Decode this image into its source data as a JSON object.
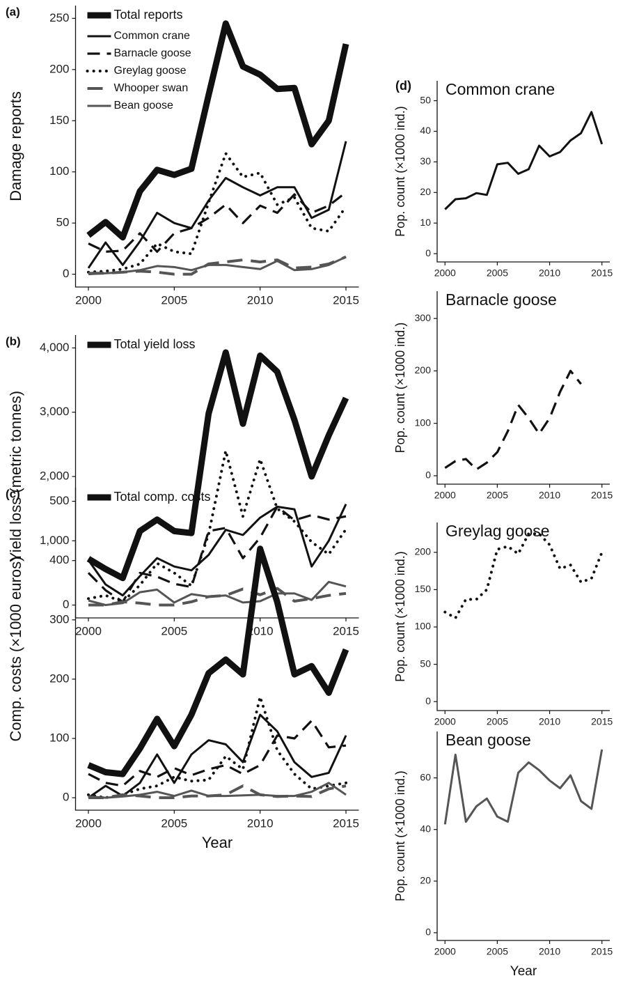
{
  "chart_data": [
    {
      "type": "line",
      "panel_label": "(a)",
      "y_label": "Damage reports",
      "x": [
        2000,
        2001,
        2002,
        2003,
        2004,
        2005,
        2006,
        2007,
        2008,
        2009,
        2010,
        2011,
        2012,
        2013,
        2014,
        2015
      ],
      "xlim": [
        1999.25,
        2015.75
      ],
      "xticks": [
        2000,
        2005,
        2010,
        2015
      ],
      "ylim": [
        -12.5,
        262.5
      ],
      "yticks": [
        0,
        50,
        100,
        150,
        200,
        250
      ],
      "legend": "upper left",
      "series": [
        {
          "name": "Total reports",
          "color": "#111111",
          "style": "thick",
          "values": [
            38,
            51,
            36,
            81,
            102,
            97,
            103,
            175,
            245,
            203,
            195,
            181,
            182,
            127,
            150,
            225
          ]
        },
        {
          "name": "Common crane",
          "color": "#111111",
          "style": "solid",
          "values": [
            6,
            31,
            9,
            32,
            60,
            50,
            45,
            72,
            94,
            85,
            77,
            85,
            85,
            55,
            63,
            130
          ]
        },
        {
          "name": "Barnacle goose",
          "color": "#111111",
          "style": "dashed",
          "values": [
            30,
            22,
            23,
            40,
            22,
            40,
            45,
            55,
            68,
            50,
            67,
            60,
            78,
            60,
            67,
            80
          ]
        },
        {
          "name": "Greylag goose",
          "color": "#111111",
          "style": "dotted",
          "values": [
            2,
            3,
            5,
            10,
            30,
            22,
            20,
            70,
            118,
            95,
            99,
            68,
            75,
            45,
            42,
            66
          ]
        },
        {
          "name": "Whooper swan",
          "color": "#555555",
          "style": "longdash",
          "values": [
            1,
            1,
            2,
            3,
            2,
            0,
            0,
            10,
            12,
            14,
            12,
            14,
            6,
            7,
            10,
            17
          ]
        },
        {
          "name": "Bean goose",
          "color": "#555555",
          "style": "solid",
          "values": [
            0,
            1,
            2,
            4,
            8,
            7,
            4,
            9,
            9,
            7,
            5,
            13,
            4,
            5,
            9,
            17
          ]
        }
      ]
    },
    {
      "type": "line",
      "panel_label": "(b)",
      "y_label": "Yield loss (metric tonnes)",
      "x": [
        2000,
        2001,
        2002,
        2003,
        2004,
        2005,
        2006,
        2007,
        2008,
        2009,
        2010,
        2011,
        2012,
        2013,
        2014,
        2015
      ],
      "xlim": [
        1999.25,
        2015.75
      ],
      "xticks": [
        2000,
        2005,
        2010,
        2015
      ],
      "ylim": [
        -200,
        4200
      ],
      "yticks": [
        0,
        {
          "value": 1000,
          "label": "1,000"
        },
        {
          "value": 2000,
          "label": "2,000"
        },
        {
          "value": 3000,
          "label": "3,000"
        },
        {
          "value": 4000,
          "label": "4,000"
        }
      ],
      "legend": "upper left",
      "series": [
        {
          "name": "Total yield loss",
          "color": "#111111",
          "style": "thick",
          "values": [
            720,
            560,
            420,
            1150,
            1330,
            1150,
            1120,
            2980,
            3930,
            2820,
            3880,
            3630,
            2880,
            2000,
            2640,
            3220
          ]
        },
        {
          "color": "#111111",
          "style": "solid",
          "values": [
            700,
            320,
            150,
            450,
            730,
            600,
            540,
            780,
            1170,
            1090,
            1360,
            1530,
            1490,
            600,
            1000,
            1570
          ]
        },
        {
          "color": "#111111",
          "style": "dashed",
          "values": [
            500,
            230,
            50,
            500,
            440,
            330,
            280,
            1150,
            1200,
            730,
            1050,
            1530,
            1320,
            1400,
            1330,
            1380
          ]
        },
        {
          "color": "#111111",
          "style": "dotted",
          "values": [
            100,
            150,
            50,
            310,
            650,
            500,
            300,
            1100,
            2400,
            1380,
            2270,
            1500,
            1300,
            980,
            790,
            1180
          ]
        },
        {
          "color": "#555555",
          "style": "longdash",
          "values": [
            0,
            0,
            50,
            30,
            0,
            0,
            50,
            130,
            150,
            250,
            160,
            260,
            60,
            100,
            150,
            180
          ]
        },
        {
          "color": "#555555",
          "style": "solid",
          "values": [
            70,
            0,
            30,
            200,
            240,
            40,
            170,
            130,
            150,
            40,
            60,
            180,
            180,
            80,
            360,
            290
          ]
        }
      ]
    },
    {
      "type": "line",
      "panel_label": "(c)",
      "y_label": "Comp. costs (×1000 euros)",
      "x_label": "Year",
      "x": [
        2000,
        2001,
        2002,
        2003,
        2004,
        2005,
        2006,
        2007,
        2008,
        2009,
        2010,
        2011,
        2012,
        2013,
        2014,
        2015
      ],
      "xlim": [
        1999.25,
        2015.75
      ],
      "xticks": [
        2000,
        2005,
        2010,
        2015
      ],
      "ylim": [
        -21,
        523
      ],
      "yticks": [
        0,
        100,
        200,
        300,
        400,
        500
      ],
      "legend": "upper left",
      "series": [
        {
          "name": "Total comp. costs",
          "color": "#111111",
          "style": "thick",
          "values": [
            55,
            43,
            40,
            83,
            133,
            87,
            140,
            210,
            233,
            208,
            420,
            330,
            208,
            222,
            177,
            250
          ]
        },
        {
          "color": "#111111",
          "style": "solid",
          "values": [
            0,
            20,
            3,
            25,
            73,
            25,
            73,
            97,
            90,
            60,
            140,
            112,
            60,
            35,
            42,
            105
          ]
        },
        {
          "color": "#111111",
          "style": "dashed",
          "values": [
            40,
            25,
            20,
            45,
            35,
            50,
            38,
            48,
            55,
            40,
            55,
            105,
            100,
            130,
            85,
            88
          ]
        },
        {
          "color": "#111111",
          "style": "dotted",
          "values": [
            5,
            0,
            5,
            15,
            20,
            35,
            28,
            30,
            70,
            48,
            170,
            80,
            40,
            15,
            20,
            25
          ]
        },
        {
          "color": "#555555",
          "style": "longdash",
          "values": [
            0,
            0,
            5,
            3,
            0,
            0,
            3,
            3,
            5,
            20,
            5,
            2,
            3,
            2,
            15,
            20
          ]
        },
        {
          "color": "#555555",
          "style": "solid",
          "values": [
            2,
            0,
            2,
            5,
            10,
            3,
            12,
            3,
            3,
            4,
            5,
            3,
            3,
            10,
            25,
            5
          ]
        }
      ]
    },
    {
      "type": "line",
      "panel_label": "(d)",
      "title": "Common crane",
      "y_label": "Pop. count (×1000 ind.)",
      "x": [
        2000,
        2001,
        2002,
        2003,
        2004,
        2005,
        2006,
        2007,
        2008,
        2009,
        2010,
        2011,
        2012,
        2013,
        2014,
        2015
      ],
      "xlim": [
        1999.25,
        2015.75
      ],
      "xticks": [
        2000,
        2005,
        2010,
        2015
      ],
      "ylim": [
        -2.7,
        56.5
      ],
      "yticks": [
        0,
        10,
        20,
        30,
        40,
        50
      ],
      "series": [
        {
          "color": "#111111",
          "style": "solid",
          "values": [
            14.5,
            17.8,
            18.1,
            19.8,
            19.2,
            29.2,
            29.7,
            26.1,
            27.6,
            35.3,
            31.8,
            33.2,
            37,
            39.4,
            46.3,
            35.8
          ]
        }
      ]
    },
    {
      "type": "line",
      "title": "Barnacle goose",
      "y_label": "Pop. count (×1000 ind.)",
      "x": [
        2000,
        2001,
        2002,
        2003,
        2004,
        2005,
        2006,
        2007,
        2008,
        2009,
        2010,
        2011,
        2012,
        2013,
        2014,
        2015
      ],
      "xlim": [
        1999.25,
        2015.75
      ],
      "xticks": [
        2000,
        2005,
        2010,
        2015
      ],
      "ylim": [
        -16,
        352
      ],
      "yticks": [
        0,
        100,
        200,
        300
      ],
      "series": [
        {
          "color": "#111111",
          "style": "dashed",
          "values": [
            15,
            28,
            32,
            12,
            25,
            45,
            85,
            135,
            110,
            80,
            110,
            160,
            200,
            175,
            null,
            null
          ]
        }
      ]
    },
    {
      "type": "line",
      "title": "Greylag goose",
      "y_label": "Pop. count (×1000 ind.)",
      "x": [
        2000,
        2001,
        2002,
        2003,
        2004,
        2005,
        2006,
        2007,
        2008,
        2009,
        2010,
        2011,
        2012,
        2013,
        2014,
        2015
      ],
      "xlim": [
        1999.25,
        2015.75
      ],
      "xticks": [
        2000,
        2005,
        2010,
        2015
      ],
      "ylim": [
        -12,
        240
      ],
      "yticks": [
        0,
        50,
        100,
        150,
        200
      ],
      "series": [
        {
          "color": "#111111",
          "style": "dotted",
          "values": [
            120,
            112,
            137,
            137,
            150,
            204,
            208,
            198,
            225,
            225,
            210,
            178,
            183,
            160,
            165,
            200
          ]
        }
      ]
    },
    {
      "type": "line",
      "title": "Bean goose",
      "y_label": "Pop. count (×1000 ind.)",
      "x_label": "Year",
      "x": [
        2000,
        2001,
        2002,
        2003,
        2004,
        2005,
        2006,
        2007,
        2008,
        2009,
        2010,
        2011,
        2012,
        2013,
        2014,
        2015
      ],
      "xlim": [
        1999.25,
        2015.75
      ],
      "xticks": [
        2000,
        2005,
        2010,
        2015
      ],
      "ylim": [
        -3,
        78
      ],
      "yticks": [
        0,
        20,
        40,
        60
      ],
      "series": [
        {
          "color": "#555555",
          "style": "solid",
          "values": [
            42,
            69,
            43,
            49,
            52,
            45,
            43,
            62,
            66,
            63,
            59,
            56,
            61,
            51,
            48,
            71
          ]
        }
      ]
    }
  ]
}
